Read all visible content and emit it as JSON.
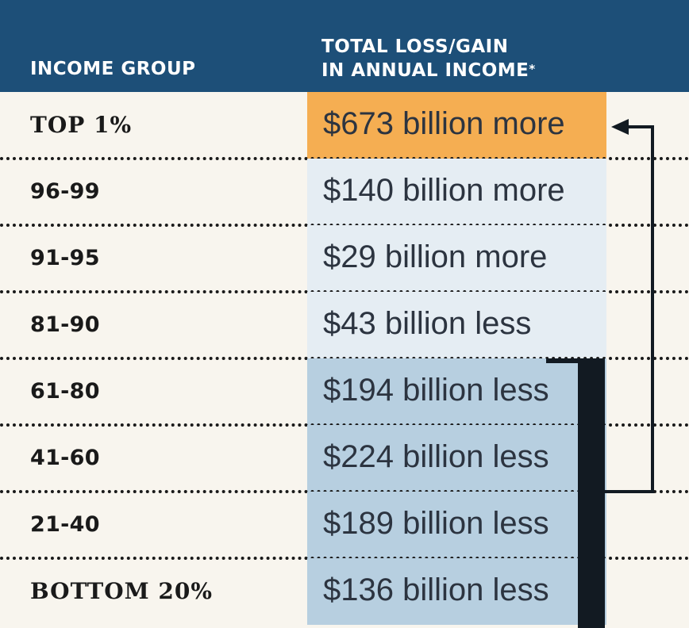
{
  "header": {
    "col1": "INCOME GROUP",
    "col2_line1": "TOTAL LOSS/GAIN",
    "col2_line2": "IN ANNUAL INCOME",
    "footnote_mark": "*"
  },
  "colors": {
    "header_bg": "#1d4f78",
    "highlight": "#f5ae52",
    "light_blue": "#e5edf3",
    "mid_blue": "#b7cfe0",
    "bracket": "#121a22"
  },
  "chart_data": {
    "type": "table",
    "columns": [
      "INCOME GROUP",
      "TOTAL LOSS/GAIN IN ANNUAL INCOME*"
    ],
    "rows": [
      {
        "group": "TOP 1%",
        "value_text": "$673 billion more",
        "value_billion": 673
      },
      {
        "group": "96-99",
        "value_text": "$140 billion more",
        "value_billion": 140
      },
      {
        "group": "91-95",
        "value_text": "$29 billion more",
        "value_billion": 29
      },
      {
        "group": "81-90",
        "value_text": "$43 billion less",
        "value_billion": -43
      },
      {
        "group": "61-80",
        "value_text": "$194 billion less",
        "value_billion": -194
      },
      {
        "group": "41-60",
        "value_text": "$224 billion less",
        "value_billion": -224
      },
      {
        "group": "21-40",
        "value_text": "$189 billion less",
        "value_billion": -189
      },
      {
        "group": "BOTTOM 20%",
        "value_text": "$136 billion less",
        "value_billion": -136
      }
    ],
    "annotation": "bracket grouping the four lowest groups, with an arrow pointing to the top 1% row"
  }
}
